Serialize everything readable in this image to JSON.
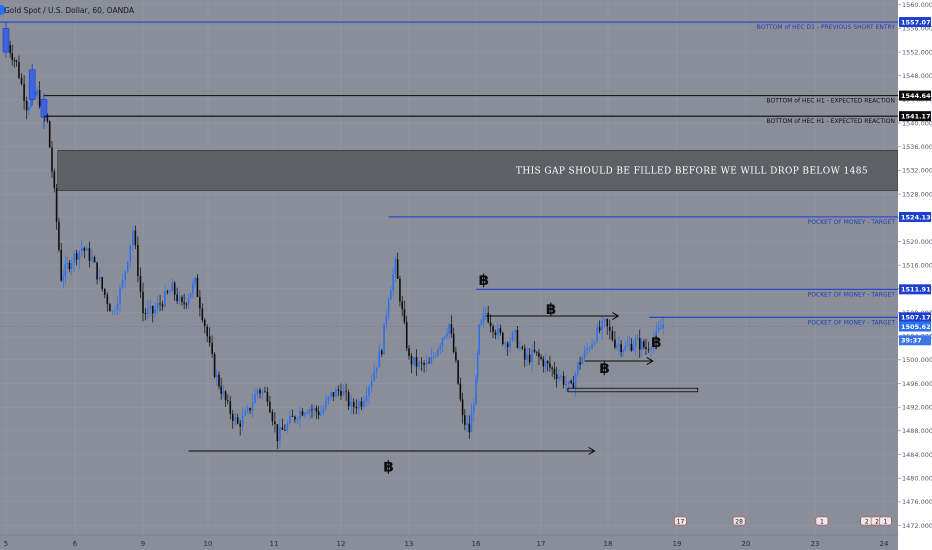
{
  "title": "Gold Spot / U.S. Dollar, 60, OANDA",
  "colors": {
    "background": "#8a8e99",
    "axis_bg": "#ffffff",
    "candle_up": "#2d6ff0",
    "candle_down": "#0d0d0d",
    "blue_line": "#1d3fd0",
    "black_line": "#0a0a0a",
    "gap_zone": "#5e6066"
  },
  "chart_data": {
    "type": "candlestick",
    "title": "Gold Spot / U.S. Dollar, 60, OANDA",
    "y_range": [
      1470.4,
      1560.8
    ],
    "x_range": [
      4.9,
      24.6
    ],
    "y_ticks": [
      "1560.000",
      "1556.000",
      "1552.000",
      "1548.000",
      "1544.000",
      "1540.000",
      "1536.000",
      "1532.000",
      "1528.000",
      "1524.000",
      "1520.000",
      "1516.000",
      "1512.000",
      "1508.000",
      "1504.000",
      "1500.000",
      "1496.000",
      "1492.000",
      "1488.000",
      "1484.000",
      "1480.000",
      "1476.000",
      "1472.000"
    ],
    "x_ticks": [
      {
        "label": "5",
        "x": 5.0
      },
      {
        "label": "6",
        "x": 6.0
      },
      {
        "label": "9",
        "x": 7.0
      },
      {
        "label": "10",
        "x": 8.0
      },
      {
        "label": "11",
        "x": 9.0
      },
      {
        "label": "12",
        "x": 10.0
      },
      {
        "label": "13",
        "x": 11.0
      },
      {
        "label": "16",
        "x": 12.0
      },
      {
        "label": "17",
        "x": 13.0
      },
      {
        "label": "18",
        "x": 14.0
      },
      {
        "label": "19",
        "x": 15.0
      },
      {
        "label": "20",
        "x": 16.0
      },
      {
        "label": "23",
        "x": 17.0
      },
      {
        "label": "24",
        "x": 18.0
      }
    ],
    "price_path": [
      [
        5.0,
        1554
      ],
      [
        5.15,
        1550
      ],
      [
        5.3,
        1543
      ],
      [
        5.45,
        1545
      ],
      [
        5.6,
        1540
      ],
      [
        5.7,
        1528
      ],
      [
        5.8,
        1514
      ],
      [
        5.95,
        1517
      ],
      [
        6.1,
        1519
      ],
      [
        6.25,
        1517
      ],
      [
        6.4,
        1512
      ],
      [
        6.55,
        1508
      ],
      [
        6.7,
        1513
      ],
      [
        6.85,
        1522
      ],
      [
        7.0,
        1508
      ],
      [
        7.15,
        1508
      ],
      [
        7.3,
        1510
      ],
      [
        7.45,
        1512
      ],
      [
        7.6,
        1509
      ],
      [
        7.8,
        1513
      ],
      [
        7.95,
        1506
      ],
      [
        8.1,
        1498
      ],
      [
        8.3,
        1492
      ],
      [
        8.45,
        1489
      ],
      [
        8.6,
        1491
      ],
      [
        8.75,
        1495
      ],
      [
        8.9,
        1494
      ],
      [
        9.05,
        1487
      ],
      [
        9.2,
        1489
      ],
      [
        9.35,
        1491
      ],
      [
        9.5,
        1492
      ],
      [
        9.7,
        1491
      ],
      [
        9.85,
        1494
      ],
      [
        10.0,
        1495
      ],
      [
        10.15,
        1492
      ],
      [
        10.3,
        1493
      ],
      [
        10.45,
        1497
      ],
      [
        10.6,
        1502
      ],
      [
        10.7,
        1511
      ],
      [
        10.8,
        1516
      ],
      [
        10.9,
        1508
      ],
      [
        11.0,
        1500
      ],
      [
        11.15,
        1499
      ],
      [
        11.3,
        1499
      ],
      [
        11.5,
        1504
      ],
      [
        11.6,
        1506
      ],
      [
        11.7,
        1499
      ],
      [
        11.8,
        1490
      ],
      [
        11.9,
        1488
      ],
      [
        12.0,
        1496
      ],
      [
        12.05,
        1505
      ],
      [
        12.15,
        1508
      ],
      [
        12.3,
        1505
      ],
      [
        12.45,
        1503
      ],
      [
        12.6,
        1504
      ],
      [
        12.75,
        1500
      ],
      [
        12.9,
        1501
      ],
      [
        13.1,
        1499
      ],
      [
        13.3,
        1497
      ],
      [
        13.45,
        1495
      ],
      [
        13.55,
        1499
      ],
      [
        13.65,
        1501
      ],
      [
        13.8,
        1504
      ],
      [
        13.95,
        1506
      ],
      [
        14.1,
        1503
      ],
      [
        14.25,
        1502
      ],
      [
        14.4,
        1503
      ],
      [
        14.55,
        1502
      ],
      [
        14.7,
        1504
      ],
      [
        14.8,
        1506
      ]
    ],
    "blue_up_candles": [
      {
        "x": 5.0,
        "open": 1552,
        "close": 1556,
        "high": 1557,
        "low": 1551
      },
      {
        "x": 5.38,
        "open": 1544,
        "close": 1549,
        "high": 1550,
        "low": 1543
      },
      {
        "x": 5.55,
        "open": 1541,
        "close": 1544,
        "high": 1545,
        "low": 1539
      }
    ],
    "gap_zone": {
      "top": 1535.4,
      "bottom": 1528.6,
      "x_start": 5.75,
      "label": "THIS GAP SHOULD BE FILLED BEFORE WE WILL DROP BELOW 1485"
    },
    "levels": [
      {
        "price": 1557.076,
        "label": "BOTTOM of HEC D1 - PREVIOUS SHORT ENTRY",
        "color": "blue",
        "x_start": 4.9,
        "tag": "1557.076"
      },
      {
        "price": 1544.644,
        "label": "BOTTOM of HEC H1 - EXPECTED REACTION",
        "color": "black",
        "x_start": 5.55,
        "tag": "1544.644"
      },
      {
        "price": 1541.174,
        "label": "BOTTOM of HEC H1 - EXPECTED REACTION",
        "color": "black",
        "x_start": 5.55,
        "tag": "1541.174"
      },
      {
        "price": 1524.136,
        "label": "POCKET OF MONEY - TARGET",
        "color": "blue",
        "x_start": 10.7,
        "tag": "1524.136"
      },
      {
        "price": 1511.913,
        "label": "POCKET OF MONEY - TARGET",
        "color": "blue",
        "x_start": 12.0,
        "tag": "1511.913"
      },
      {
        "price": 1507.176,
        "label": "POCKET OF MONEY - TARGET",
        "color": "blue",
        "x_start": 14.6,
        "tag": "1507.176"
      }
    ],
    "price_tags": [
      {
        "price": 1505.626,
        "label": "1505.626"
      },
      {
        "price": 1503.3,
        "label": "39:37"
      }
    ],
    "arrows": [
      {
        "price": 1484.6,
        "x1": 7.7,
        "x2": 13.8
      },
      {
        "price": 1507.4,
        "x1": 12.15,
        "x2": 14.15
      },
      {
        "price": 1499.8,
        "x1": 13.65,
        "x2": 14.65
      }
    ],
    "support_box": {
      "top": 1495.2,
      "bottom": 1494.6,
      "x1": 13.4,
      "x2": 15.3
    },
    "btc_marks": [
      {
        "x": 12.12,
        "price": 1513.5
      },
      {
        "x": 13.15,
        "price": 1508.6
      },
      {
        "x": 10.7,
        "price": 1482.0
      },
      {
        "x": 13.95,
        "price": 1498.6
      },
      {
        "x": 14.7,
        "price": 1503.0
      }
    ],
    "event_markers": [
      {
        "x": 15.05,
        "label": "17"
      },
      {
        "x": 15.9,
        "label": "28"
      },
      {
        "x": 17.1,
        "label": "1"
      },
      {
        "x": 17.75,
        "label": "2"
      },
      {
        "x": 17.9,
        "label": "2"
      },
      {
        "x": 18.02,
        "label": "1"
      }
    ]
  }
}
